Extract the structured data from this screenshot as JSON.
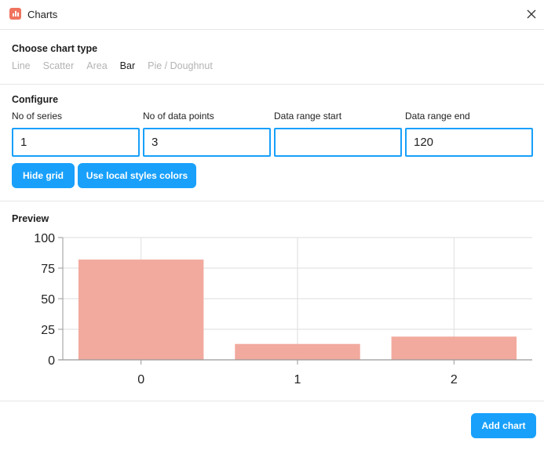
{
  "window": {
    "title": "Charts"
  },
  "chart_type": {
    "heading": "Choose chart type",
    "options": [
      "Line",
      "Scatter",
      "Area",
      "Bar",
      "Pie / Doughnut"
    ],
    "selected": "Bar"
  },
  "configure": {
    "heading": "Configure",
    "series_label": "No of series",
    "series_value": "1",
    "points_label": "No of data points",
    "points_value": "3",
    "range_start_label": "Data range start",
    "range_start_value": "",
    "range_end_label": "Data range end",
    "range_end_value": "120",
    "hide_grid_label": "Hide grid",
    "local_colors_label": "Use local styles colors"
  },
  "preview": {
    "heading": "Preview"
  },
  "actions": {
    "add_chart_label": "Add chart"
  },
  "colors": {
    "accent": "#18a0fb",
    "bar": "#f2aa9e",
    "app_icon": "#f0735e"
  },
  "chart_data": {
    "type": "bar",
    "categories": [
      "0",
      "1",
      "2"
    ],
    "series": [
      {
        "values": [
          82,
          13,
          19
        ]
      }
    ],
    "ylim": [
      0,
      100
    ],
    "yticks": [
      0,
      25,
      50,
      75,
      100
    ],
    "grid": true,
    "title": "",
    "xlabel": "",
    "ylabel": ""
  }
}
